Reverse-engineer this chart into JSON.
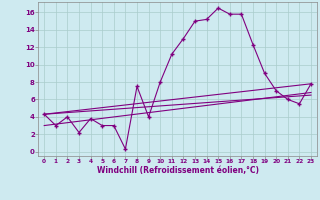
{
  "xlabel": "Windchill (Refroidissement éolien,°C)",
  "background_color": "#ceeaf0",
  "grid_color": "#aacccc",
  "line_color": "#800080",
  "x_ticks": [
    0,
    1,
    2,
    3,
    4,
    5,
    6,
    7,
    8,
    9,
    10,
    11,
    12,
    13,
    14,
    15,
    16,
    17,
    18,
    19,
    20,
    21,
    22,
    23
  ],
  "y_ticks": [
    0,
    2,
    4,
    6,
    8,
    10,
    12,
    14,
    16
  ],
  "xlim": [
    -0.5,
    23.5
  ],
  "ylim": [
    -0.5,
    17.2
  ],
  "series1_x": [
    0,
    1,
    2,
    3,
    4,
    5,
    6,
    7,
    8,
    9,
    10,
    11,
    12,
    13,
    14,
    15,
    16,
    17,
    18,
    19,
    20,
    21,
    22,
    23
  ],
  "series1_y": [
    4.3,
    3.0,
    4.0,
    2.2,
    3.8,
    3.0,
    3.0,
    0.3,
    7.5,
    4.0,
    8.0,
    11.2,
    13.0,
    15.0,
    15.2,
    16.5,
    15.8,
    15.8,
    12.3,
    9.0,
    7.0,
    6.0,
    5.5,
    7.8
  ],
  "series2_x": [
    0,
    23
  ],
  "series2_y": [
    4.3,
    7.8
  ],
  "series3_x": [
    0,
    23
  ],
  "series3_y": [
    4.3,
    6.5
  ],
  "series4_x": [
    0,
    23
  ],
  "series4_y": [
    3.0,
    6.8
  ],
  "xlabel_fontsize": 5.5,
  "tick_fontsize_x": 4.2,
  "tick_fontsize_y": 5.0
}
